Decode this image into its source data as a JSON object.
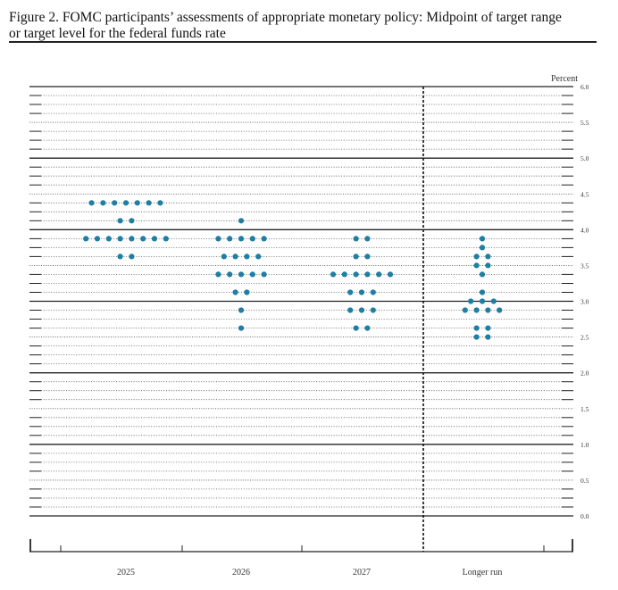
{
  "figure": {
    "title_line1": "Figure 2.  FOMC participants’ assessments of appropriate monetary policy: Midpoint of target range",
    "title_line2": "or target level for the federal funds rate"
  },
  "colors": {
    "dot": "#1f7ea3",
    "major_grid": "#222222",
    "minor_grid": "#555555"
  },
  "chart_data": {
    "type": "scatter",
    "subtype": "dot plot",
    "ylabel": "Percent",
    "ylim": [
      0.0,
      6.0
    ],
    "y_ticks": [
      "6.0",
      "5.5",
      "5.0",
      "4.5",
      "4.0",
      "3.5",
      "3.0",
      "2.5",
      "2.0",
      "1.5",
      "1.0",
      "0.5",
      "0.0"
    ],
    "y_step": 0.125,
    "categories": [
      "2025",
      "2026",
      "2027",
      "Longer run"
    ],
    "divider_after_category": "2027",
    "grid": true,
    "series": [
      {
        "category": "2025",
        "points": [
          {
            "y": 4.375,
            "count": 7
          },
          {
            "y": 4.125,
            "count": 2
          },
          {
            "y": 3.875,
            "count": 8
          },
          {
            "y": 3.625,
            "count": 2
          }
        ]
      },
      {
        "category": "2026",
        "points": [
          {
            "y": 4.125,
            "count": 1
          },
          {
            "y": 3.875,
            "count": 5
          },
          {
            "y": 3.625,
            "count": 4
          },
          {
            "y": 3.375,
            "count": 5
          },
          {
            "y": 3.125,
            "count": 2
          },
          {
            "y": 2.875,
            "count": 1
          },
          {
            "y": 2.625,
            "count": 1
          }
        ]
      },
      {
        "category": "2027",
        "points": [
          {
            "y": 3.875,
            "count": 2
          },
          {
            "y": 3.625,
            "count": 2
          },
          {
            "y": 3.375,
            "count": 6
          },
          {
            "y": 3.125,
            "count": 3
          },
          {
            "y": 2.875,
            "count": 3
          },
          {
            "y": 2.625,
            "count": 2
          }
        ]
      },
      {
        "category": "Longer run",
        "points": [
          {
            "y": 3.875,
            "count": 1
          },
          {
            "y": 3.75,
            "count": 1
          },
          {
            "y": 3.625,
            "count": 2
          },
          {
            "y": 3.5,
            "count": 2
          },
          {
            "y": 3.375,
            "count": 1
          },
          {
            "y": 3.125,
            "count": 1
          },
          {
            "y": 3.0,
            "count": 3
          },
          {
            "y": 2.875,
            "count": 4
          },
          {
            "y": 2.625,
            "count": 2
          },
          {
            "y": 2.5,
            "count": 2
          }
        ]
      }
    ]
  }
}
